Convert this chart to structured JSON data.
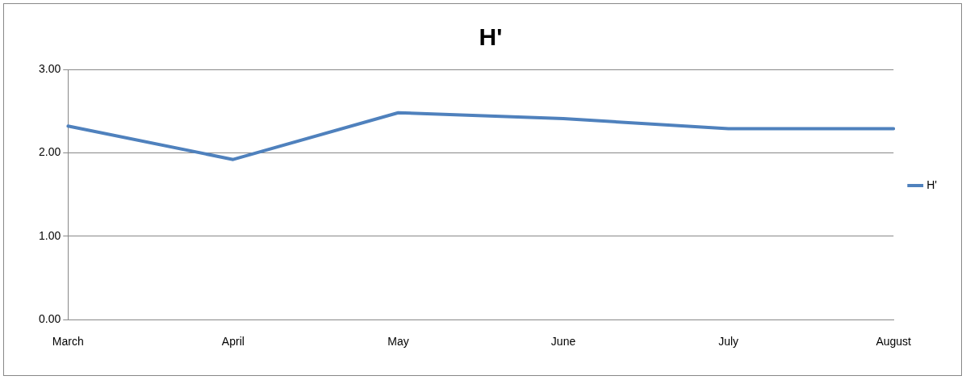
{
  "chart_data": {
    "type": "line",
    "title": "H'",
    "categories": [
      "March",
      "April",
      "May",
      "June",
      "July",
      "August"
    ],
    "series": [
      {
        "name": "H'",
        "color": "#4f81bd",
        "values": [
          2.32,
          1.92,
          2.48,
          2.41,
          2.29,
          2.29
        ]
      }
    ],
    "ylim": [
      0,
      3
    ],
    "yticks": [
      {
        "value": 0,
        "label": "0.00"
      },
      {
        "value": 1,
        "label": "1.00"
      },
      {
        "value": 2,
        "label": "2.00"
      },
      {
        "value": 3,
        "label": "3.00"
      }
    ],
    "grid": "y",
    "legend": "right",
    "marker": "none"
  }
}
